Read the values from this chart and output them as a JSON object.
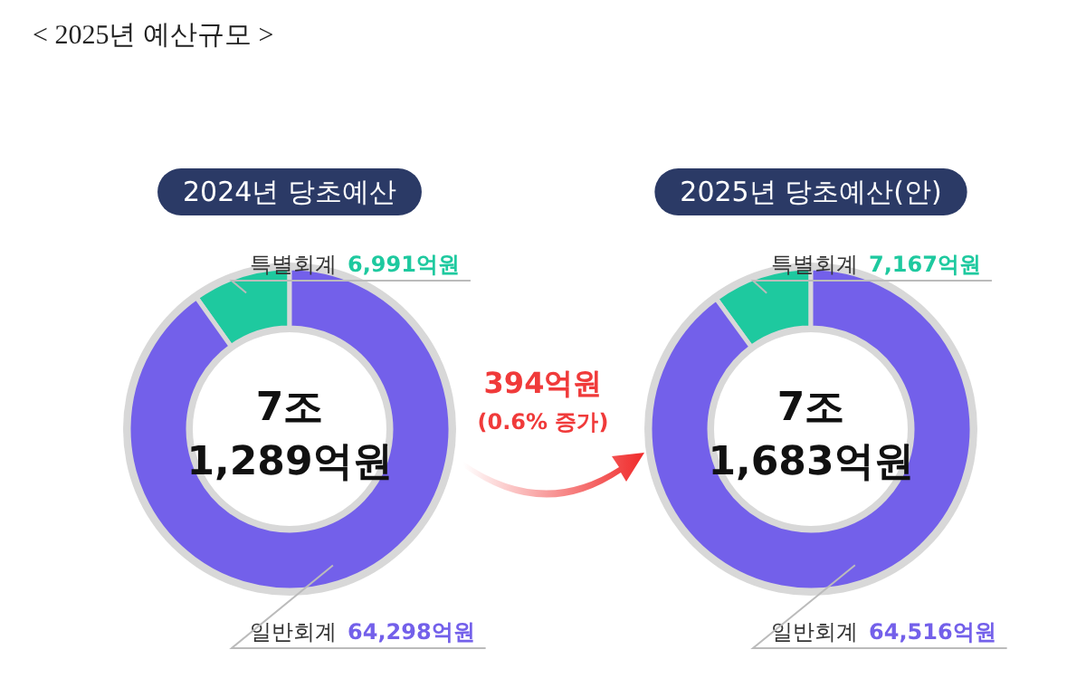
{
  "chart_data": [
    {
      "type": "donut",
      "title": "2024년 당초예산",
      "categories": [
        "특별회계",
        "일반회계"
      ],
      "values": [
        6991,
        64298
      ],
      "colors": [
        "#1ec99f",
        "#7360ea"
      ],
      "value_labels": [
        "6,991억원",
        "64,298억원"
      ],
      "annotations": [
        "< 2025년 예산규모 >",
        "7조",
        "1,289억원"
      ]
    },
    {
      "type": "donut",
      "title": "2025년 당초예산(안)",
      "categories": [
        "특별회계",
        "일반회계"
      ],
      "values": [
        7167,
        64516
      ],
      "colors": [
        "#1ec99f",
        "#7360ea"
      ],
      "value_labels": [
        "7,167억원",
        "64,516억원"
      ],
      "annotations": [
        "7조",
        "1,683억원",
        "394억원",
        "(0.6% 증가)"
      ]
    }
  ]
}
